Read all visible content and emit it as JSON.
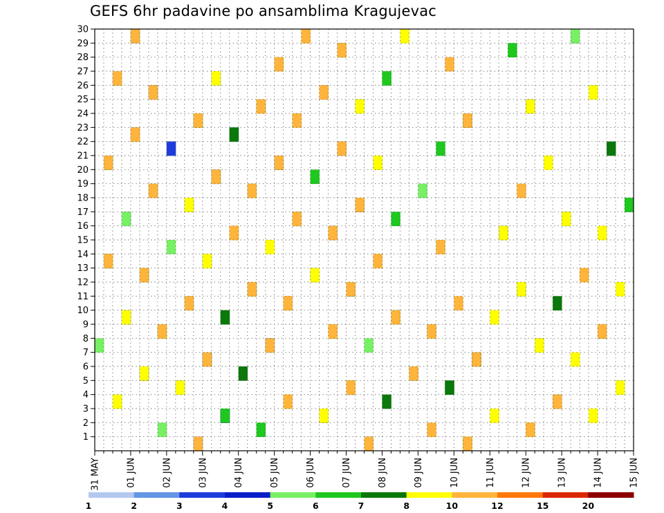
{
  "chart_data": {
    "type": "heatmap",
    "title": "GEFS 6hr padavine po ansamblima Kragujevac",
    "xlabel": "",
    "ylabel": "",
    "x_tick_labels": [
      "31 MAY",
      "01 JUN",
      "02 JUN",
      "03 JUN",
      "04 JUN",
      "05 JUN",
      "06 JUN",
      "07 JUN",
      "08 JUN",
      "09 JUN",
      "10 JUN",
      "11 JUN",
      "12 JUN",
      "13 JUN",
      "14 JUN",
      "15 JUN"
    ],
    "y_tick_labels": [
      "1",
      "2",
      "3",
      "4",
      "5",
      "6",
      "7",
      "8",
      "9",
      "10",
      "11",
      "12",
      "13",
      "14",
      "15",
      "16",
      "17",
      "18",
      "19",
      "20",
      "21",
      "22",
      "23",
      "24",
      "25",
      "26",
      "27",
      "28",
      "29",
      "30"
    ],
    "x_range_days": [
      0,
      15
    ],
    "y_range": [
      0,
      30
    ],
    "time_step_hours": 6,
    "grid": "dotted",
    "legend_position": "bottom",
    "legend_levels": [
      "1",
      "2",
      "3",
      "4",
      "5",
      "6",
      "7",
      "8",
      "10",
      "12",
      "15",
      "20"
    ],
    "legend_colors": [
      "#b4c8f0",
      "#6496e6",
      "#1e3cdc",
      "#0a1ec8",
      "#78f064",
      "#1ec81e",
      "#0a780a",
      "#ffff00",
      "#ffb43c",
      "#ff780a",
      "#dc2800",
      "#8c0000"
    ],
    "cells": [
      {
        "m": 1,
        "t": [
          1,
          2,
          6,
          7,
          12,
          13,
          15,
          17,
          19,
          24,
          26,
          36,
          47,
          52,
          55,
          63
        ]
      },
      {
        "m": 2,
        "t": [
          1,
          2,
          5,
          10,
          11,
          12,
          13,
          14,
          17,
          18,
          23,
          25,
          27,
          28,
          32,
          41,
          42,
          45,
          47,
          48,
          62,
          67,
          68,
          70
        ]
      },
      {
        "m": 3,
        "t": [
          1,
          2,
          3,
          4,
          5,
          6,
          11,
          12,
          14,
          19,
          20,
          22,
          24,
          25,
          26,
          30,
          33,
          35,
          45,
          48,
          49,
          63,
          64,
          66,
          67,
          68,
          69,
          70
        ]
      },
      {
        "m": 4,
        "t": [
          1,
          2,
          3,
          4,
          5,
          11,
          12,
          14,
          26,
          27,
          28,
          29,
          41,
          42,
          48,
          53,
          56,
          59,
          64,
          71,
          72,
          73,
          75,
          81,
          85,
          86,
          88,
          89
        ]
      },
      {
        "m": 5,
        "t": [
          1,
          2,
          6,
          7,
          8,
          10,
          12,
          21,
          26,
          28,
          32,
          33,
          35,
          36,
          38,
          42,
          49,
          51,
          53,
          56,
          58,
          60,
          62,
          63,
          64,
          67,
          70,
          72,
          73,
          75,
          80,
          82,
          87,
          89,
          90
        ]
      },
      {
        "m": 6,
        "t": [
          11,
          12,
          13,
          14,
          17,
          18,
          30,
          31,
          32,
          33,
          46,
          47,
          52,
          54,
          55,
          58,
          59,
          61,
          62,
          65,
          67,
          69,
          74,
          77,
          78,
          84,
          87,
          88,
          89,
          91,
          93,
          97,
          98,
          99,
          101
        ]
      },
      {
        "m": 7,
        "t": [
          2,
          3,
          11,
          17,
          18,
          19,
          20,
          22,
          26,
          28,
          29,
          41,
          42,
          51,
          52,
          56,
          57,
          61,
          65,
          66,
          74,
          75,
          76,
          87,
          88,
          92,
          99,
          101,
          108,
          111
        ]
      },
      {
        "m": 8,
        "t": [
          1,
          2,
          3,
          4,
          5,
          11,
          15,
          17,
          18,
          22,
          23,
          24,
          25,
          26,
          28,
          31,
          41,
          44,
          45,
          47,
          48,
          49,
          50,
          52,
          54,
          55,
          58,
          62,
          67,
          69,
          70,
          72,
          73,
          79,
          80,
          81,
          85,
          87,
          89,
          91,
          94,
          101,
          104,
          108,
          113,
          115,
          116,
          118
        ]
      },
      {
        "m": 9,
        "t": [
          1,
          2,
          4,
          6,
          10,
          11,
          12,
          13,
          15,
          17,
          18,
          19,
          20,
          21,
          22,
          23,
          25,
          26,
          27,
          28,
          29,
          30,
          31,
          33,
          35,
          37,
          38,
          39,
          40,
          41,
          42,
          51,
          54,
          56,
          61,
          64,
          65,
          66,
          67,
          71,
          77,
          80,
          81,
          82,
          86,
          87,
          88,
          97,
          101,
          107,
          108
        ]
      }
    ]
  }
}
